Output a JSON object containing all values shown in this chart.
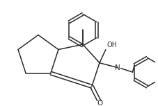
{
  "background_color": "#ffffff",
  "line_color": "#2a2a2a",
  "line_width": 1.1,
  "figsize": [
    2.28,
    1.53
  ],
  "dpi": 100,
  "xlim": [
    0,
    228
  ],
  "ylim": [
    0,
    153
  ]
}
